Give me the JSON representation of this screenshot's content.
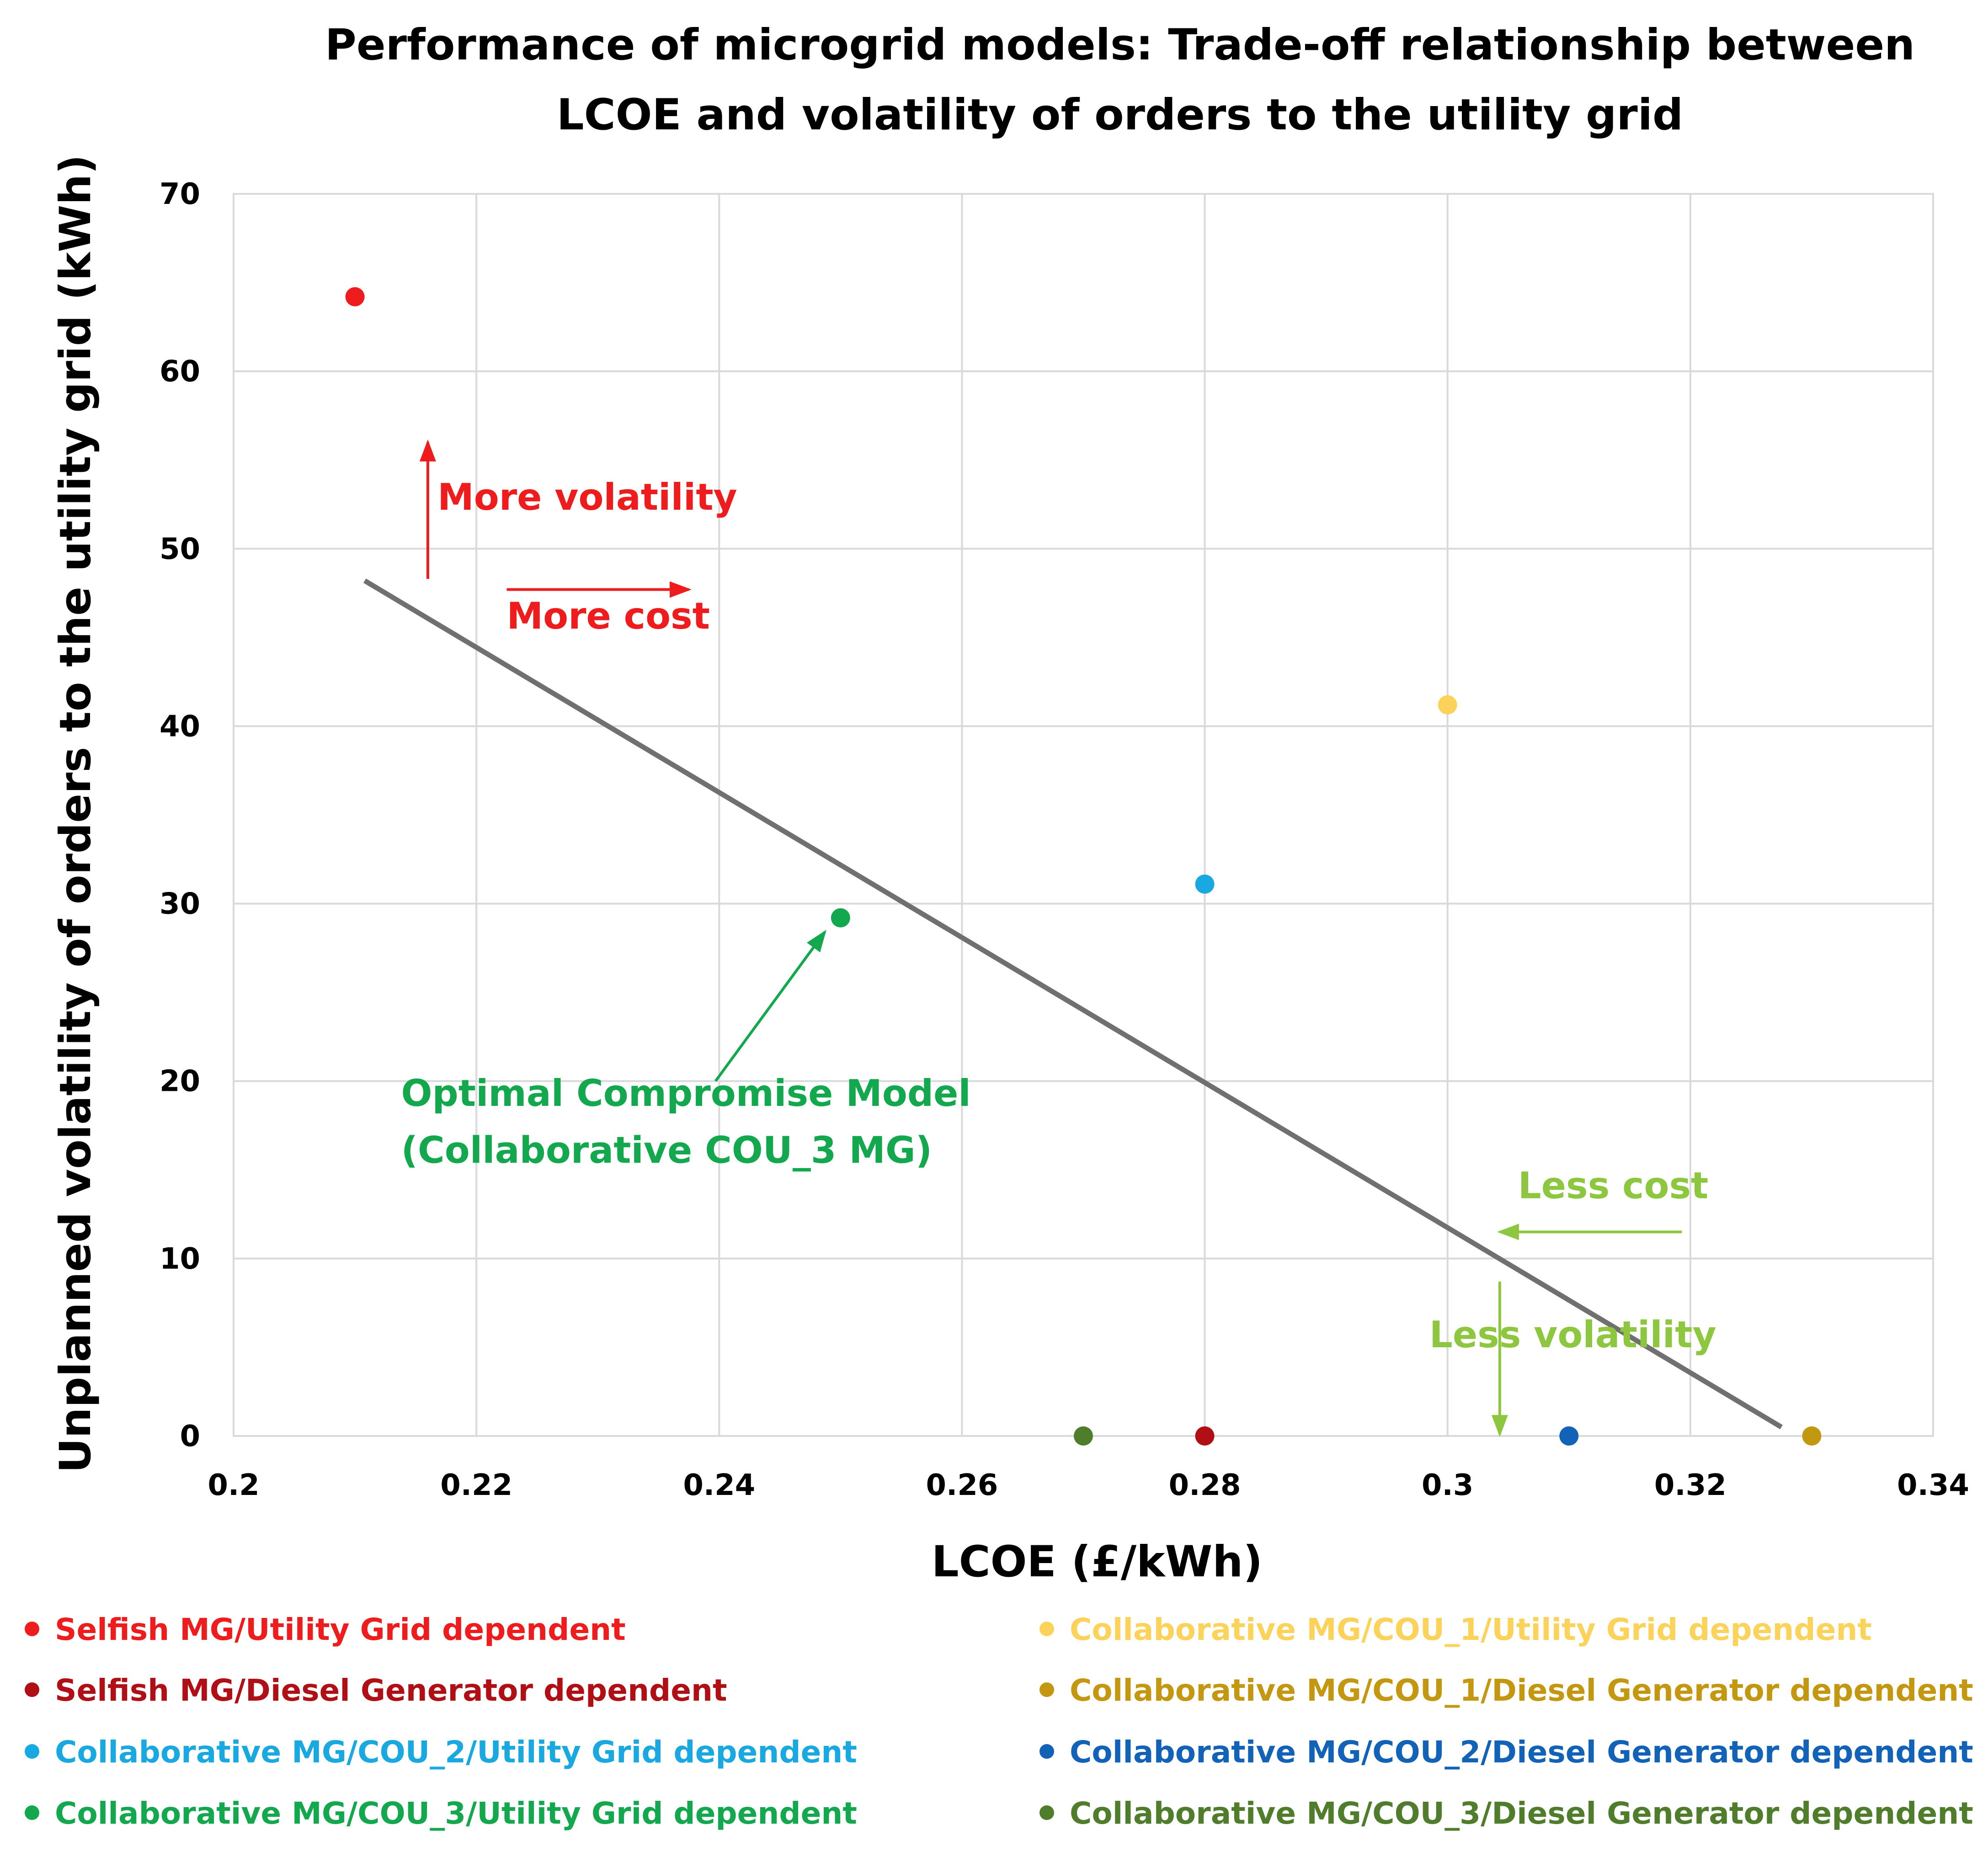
{
  "chart_data": {
    "type": "scatter",
    "title_lines": [
      "Performance of microgrid models: Trade-off relationship between",
      "LCOE and volatility of orders to the utility grid"
    ],
    "xlabel": "LCOE (£/kWh)",
    "ylabel": "Unplanned volatility of orders to the utility grid (kWh)",
    "xlim": [
      0.2,
      0.34
    ],
    "ylim": [
      0,
      70
    ],
    "x_ticks": [
      0.2,
      0.22,
      0.24,
      0.26,
      0.28,
      0.3,
      0.32,
      0.34
    ],
    "x_tick_labels": [
      "0.2",
      "0.22",
      "0.24",
      "0.26",
      "0.28",
      "0.3",
      "0.32",
      "0.34"
    ],
    "y_ticks": [
      0,
      10,
      20,
      30,
      40,
      50,
      60,
      70
    ],
    "y_tick_labels": [
      "0",
      "10",
      "20",
      "30",
      "40",
      "50",
      "60",
      "70"
    ],
    "grid": true,
    "legend_position": "bottom",
    "series": [
      {
        "name": "Selfish MG/Utility Grid dependent",
        "color": "#ee1c1c",
        "x": 0.21,
        "y": 64.2
      },
      {
        "name": "Selfish MG/Diesel Generator dependent",
        "color": "#b01015",
        "x": 0.28,
        "y": 0
      },
      {
        "name": "Collaborative MG/COU_2/Utility Grid dependent",
        "color": "#1aa8e0",
        "x": 0.28,
        "y": 31.1
      },
      {
        "name": "Collaborative MG/COU_3/Utility Grid dependent",
        "color": "#14a84e",
        "x": 0.25,
        "y": 29.2
      },
      {
        "name": "Collaborative MG/COU_1/Utility Grid dependent",
        "color": "#fcd35a",
        "x": 0.3,
        "y": 41.2
      },
      {
        "name": "Collaborative MG/COU_1/Diesel Generator dependent",
        "color": "#c39810",
        "x": 0.33,
        "y": 0
      },
      {
        "name": "Collaborative MG/COU_2/Diesel Generator dependent",
        "color": "#1262b8",
        "x": 0.31,
        "y": 0
      },
      {
        "name": "Collaborative MG/COU_3/Diesel Generator dependent",
        "color": "#4f7d2c",
        "x": 0.27,
        "y": 0
      }
    ],
    "trend_line": {
      "color": "#707070",
      "x": [
        0.2108,
        0.3275
      ],
      "y": [
        48.2,
        0.5
      ]
    },
    "annotations": [
      {
        "text": "More volatility",
        "color": "#ee1c1c",
        "x": 0.2168,
        "y": 52.2
      },
      {
        "text": "More cost",
        "color": "#ee1c1c",
        "x": 0.2225,
        "y": 45.5
      },
      {
        "text": "Optimal Compromise Model",
        "color": "#14a84e",
        "x": 0.2138,
        "y": 18.6
      },
      {
        "text": "(Collaborative COU_3 MG)",
        "color": "#14a84e",
        "x": 0.2138,
        "y": 15.4
      },
      {
        "text": "Less cost",
        "color": "#8dc63f",
        "x": 0.3058,
        "y": 13.4
      },
      {
        "text": "Less volatility",
        "color": "#8dc63f",
        "x": 0.2985,
        "y": 5.0
      }
    ],
    "arrows": [
      {
        "color": "#ee1c1c",
        "from": [
          0.216,
          48.3
        ],
        "to": [
          0.216,
          56.0
        ]
      },
      {
        "color": "#ee1c1c",
        "from": [
          0.2225,
          47.7
        ],
        "to": [
          0.2375,
          47.7
        ]
      },
      {
        "color": "#14a84e",
        "from": [
          0.2397,
          20.0
        ],
        "to": [
          0.2487,
          28.4
        ]
      },
      {
        "color": "#8dc63f",
        "from": [
          0.3193,
          11.5
        ],
        "to": [
          0.3043,
          11.5
        ]
      },
      {
        "color": "#8dc63f",
        "from": [
          0.3043,
          8.7
        ],
        "to": [
          0.3043,
          0.1
        ]
      }
    ]
  }
}
